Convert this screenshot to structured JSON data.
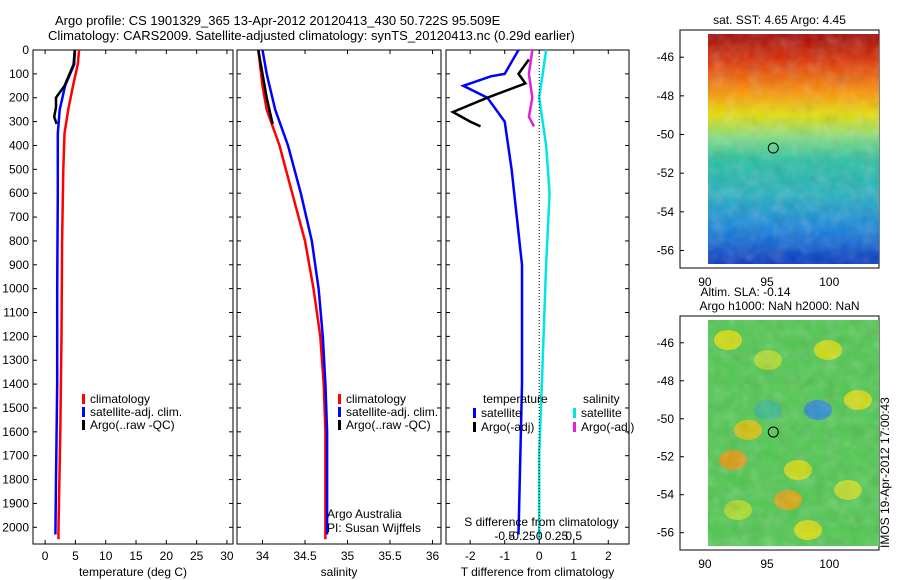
{
  "header": {
    "line1": "Argo profile: CS 1901329_365 13-Apr-2012 20120413_430 50.722S 95.509E",
    "line2": "Climatology: CARS2009. Satellite-adjusted climatology: synTS_20120413.nc (0.29d earlier)"
  },
  "side_text": "IMOS 19-Apr-2012 17:00:43",
  "colors": {
    "climatology": "#ff0000",
    "satellite": "#0000ff",
    "argo": "#000000",
    "sat_sal": "#00e5e5",
    "argo_sal": "#e020e0"
  },
  "chart_data": [
    {
      "id": "temperature",
      "type": "line",
      "xlabel": "temperature (deg C)",
      "ylabel": "",
      "xlim": [
        -2,
        31
      ],
      "ylim": [
        2070,
        0
      ],
      "xticks": [
        0,
        5,
        10,
        15,
        20,
        25,
        30
      ],
      "xtick_labels": [
        "0",
        "5",
        "10",
        "15",
        "20",
        "25",
        "30"
      ],
      "yticks": [
        0,
        100,
        200,
        300,
        400,
        500,
        600,
        700,
        800,
        900,
        1000,
        1100,
        1200,
        1300,
        1400,
        1500,
        1600,
        1700,
        1800,
        1900,
        2000
      ],
      "ytick_labels": [
        "0",
        "100",
        "200",
        "300",
        "400",
        "500",
        "600",
        "700",
        "800",
        "900",
        "1000",
        "1100",
        "1200",
        "1300",
        "1400",
        "1500",
        "1600",
        "1700",
        "1800",
        "1900",
        "2000"
      ],
      "legend": [
        "climatology",
        "satellite-adj. clim.",
        "Argo(..raw -QC)"
      ],
      "series": [
        {
          "name": "climatology",
          "color": "#ff0000",
          "points": [
            [
              5.6,
              0
            ],
            [
              5.4,
              60
            ],
            [
              4.6,
              150
            ],
            [
              3.8,
              250
            ],
            [
              3.2,
              350
            ],
            [
              3.0,
              500
            ],
            [
              2.8,
              800
            ],
            [
              2.7,
              1200
            ],
            [
              2.5,
              1600
            ],
            [
              2.2,
              2000
            ],
            [
              2.2,
              2050
            ]
          ]
        },
        {
          "name": "satellite-adj. clim.",
          "color": "#0000ff",
          "points": [
            [
              4.9,
              0
            ],
            [
              4.8,
              60
            ],
            [
              3.3,
              150
            ],
            [
              2.4,
              250
            ],
            [
              2.1,
              350
            ],
            [
              2.1,
              600
            ],
            [
              2.0,
              1000
            ],
            [
              2.0,
              1400
            ],
            [
              1.8,
              1800
            ],
            [
              1.7,
              2030
            ]
          ]
        },
        {
          "name": "Argo(..raw -QC)",
          "color": "#000000",
          "points": [
            [
              4.9,
              0
            ],
            [
              4.7,
              60
            ],
            [
              3.2,
              150
            ],
            [
              1.8,
              200
            ],
            [
              1.8,
              240
            ],
            [
              1.5,
              280
            ],
            [
              1.9,
              310
            ]
          ]
        }
      ]
    },
    {
      "id": "salinity",
      "type": "line",
      "xlabel": "salinity",
      "ylabel": "",
      "xlim": [
        33.7,
        36.1
      ],
      "ylim": [
        2070,
        0
      ],
      "xticks": [
        34,
        34.5,
        35,
        35.5,
        36
      ],
      "xtick_labels": [
        "34",
        "34.5",
        "35",
        "35.5",
        "36"
      ],
      "legend": [
        "climatology",
        "satellite-adj. clim.",
        "Argo(..raw -QC)"
      ],
      "annotation": [
        "Argo Australia",
        "PI: Susan Wijffels"
      ],
      "series": [
        {
          "name": "climatology",
          "color": "#ff0000",
          "points": [
            [
              33.95,
              0
            ],
            [
              34.0,
              150
            ],
            [
              34.05,
              250
            ],
            [
              34.2,
              400
            ],
            [
              34.35,
              600
            ],
            [
              34.5,
              800
            ],
            [
              34.6,
              1000
            ],
            [
              34.68,
              1200
            ],
            [
              34.72,
              1400
            ],
            [
              34.74,
              1600
            ],
            [
              34.74,
              2050
            ]
          ]
        },
        {
          "name": "satellite-adj. clim.",
          "color": "#0000ff",
          "points": [
            [
              34.0,
              0
            ],
            [
              34.05,
              100
            ],
            [
              34.15,
              250
            ],
            [
              34.3,
              400
            ],
            [
              34.45,
              600
            ],
            [
              34.58,
              800
            ],
            [
              34.66,
              1000
            ],
            [
              34.71,
              1200
            ],
            [
              34.74,
              1400
            ],
            [
              34.76,
              1600
            ],
            [
              34.76,
              2030
            ]
          ]
        },
        {
          "name": "Argo(..raw -QC)",
          "color": "#000000",
          "points": [
            [
              33.95,
              0
            ],
            [
              34.0,
              100
            ],
            [
              34.05,
              200
            ],
            [
              34.1,
              280
            ],
            [
              34.12,
              310
            ]
          ]
        }
      ]
    },
    {
      "id": "difference",
      "type": "line",
      "xlabel": "T difference from climatology",
      "top_xlabel": "S difference from climatology",
      "xlim": [
        -2.7,
        2.6
      ],
      "ylim": [
        2070,
        0
      ],
      "xticks": [
        -2,
        -1,
        0,
        1,
        2
      ],
      "xtick_labels": [
        "-2",
        "-1",
        "0",
        "1",
        "2"
      ],
      "top_xticks": [
        -0.5,
        -0.25,
        0,
        0.25,
        0.5
      ],
      "top_xtick_labels": [
        "-0.5",
        "-0.25",
        "0",
        "0.25",
        "0.5"
      ],
      "legend_titles": [
        "temperature",
        "salinity"
      ],
      "legend": [
        "satellite",
        "Argo(-adj)",
        "satellite",
        "Argo(-adj)"
      ],
      "series": [
        {
          "name": "satellite",
          "group": "temperature",
          "color": "#0000ff",
          "points": [
            [
              -0.6,
              0
            ],
            [
              -1.0,
              100
            ],
            [
              -1.4,
              110
            ],
            [
              -2.2,
              150
            ],
            [
              -1.5,
              200
            ],
            [
              -1.0,
              300
            ],
            [
              -0.8,
              500
            ],
            [
              -0.5,
              900
            ],
            [
              -0.5,
              1400
            ],
            [
              -0.6,
              2030
            ]
          ]
        },
        {
          "name": "Argo(-adj)",
          "group": "temperature",
          "color": "#000000",
          "points": [
            [
              -0.3,
              40
            ],
            [
              -0.6,
              100
            ],
            [
              -0.4,
              140
            ],
            [
              -1.5,
              200
            ],
            [
              -2.5,
              260
            ],
            [
              -2.0,
              300
            ],
            [
              -1.7,
              320
            ]
          ]
        },
        {
          "name": "satellite",
          "group": "salinity",
          "color": "#00e5e5",
          "points": [
            [
              0.2,
              0
            ],
            [
              0.1,
              100
            ],
            [
              0.0,
              200
            ],
            [
              0.2,
              400
            ],
            [
              0.3,
              600
            ],
            [
              0.2,
              900
            ],
            [
              0.1,
              1300
            ],
            [
              0.0,
              1700
            ],
            [
              0.0,
              2050
            ]
          ]
        },
        {
          "name": "Argo(-adj)",
          "group": "salinity",
          "color": "#e020e0",
          "points": [
            [
              -0.2,
              0
            ],
            [
              -0.3,
              100
            ],
            [
              -0.2,
              200
            ],
            [
              -0.3,
              280
            ],
            [
              -0.15,
              320
            ]
          ]
        }
      ]
    },
    {
      "id": "sst_map",
      "type": "heatmap",
      "title": "sat. SST: 4.65 Argo: 4.45",
      "xticks": [
        90,
        95,
        100
      ],
      "xtick_labels": [
        "90",
        "95",
        "100"
      ],
      "yticks": [
        -46,
        -48,
        -50,
        -52,
        -54,
        -56
      ],
      "ytick_labels": [
        "-46",
        "-48",
        "-50",
        "-52",
        "-54",
        "-56"
      ],
      "xlim": [
        88,
        104
      ],
      "ylim": [
        -56.7,
        -44.8
      ],
      "marker": [
        95.5,
        -50.7
      ]
    },
    {
      "id": "sla_map",
      "type": "heatmap",
      "title": "Altim. SLA: -0.14",
      "subtitle": "Argo h1000: NaN h2000: NaN",
      "xticks": [
        90,
        95,
        100
      ],
      "xtick_labels": [
        "90",
        "95",
        "100"
      ],
      "yticks": [
        -46,
        -48,
        -50,
        -52,
        -54,
        -56
      ],
      "ytick_labels": [
        "-46",
        "-48",
        "-50",
        "-52",
        "-54",
        "-56"
      ],
      "xlim": [
        88,
        104
      ],
      "ylim": [
        -56.7,
        -44.8
      ],
      "marker": [
        95.5,
        -50.7
      ]
    }
  ]
}
